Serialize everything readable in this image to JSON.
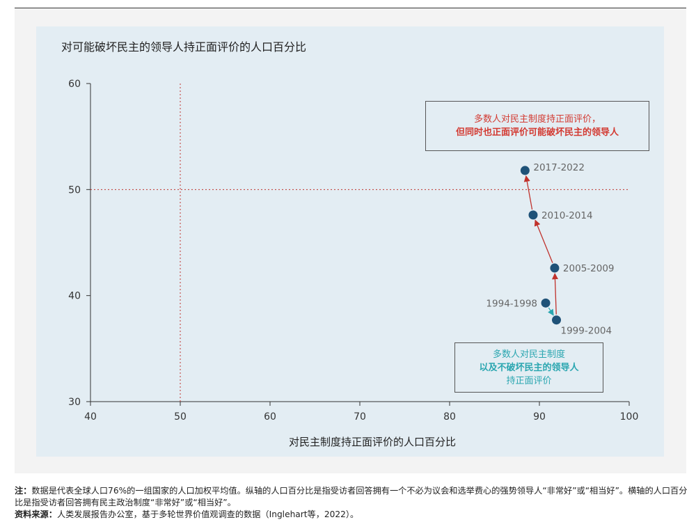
{
  "chart_data": {
    "type": "scatter",
    "title": "对可能破坏民主的领导人持正面评价的人口百分比",
    "xlabel": "对民主制度持正面评价的人口百分比",
    "ylabel": "",
    "xlim": [
      40,
      100
    ],
    "ylim": [
      30,
      60
    ],
    "xticks": [
      "40",
      "50",
      "60",
      "70",
      "80",
      "90",
      "100"
    ],
    "yticks": [
      "30",
      "40",
      "50",
      "60"
    ],
    "reference_lines": {
      "x": 50,
      "y": 50
    },
    "grid": false,
    "point_color": "#1f5278",
    "points": [
      {
        "label": "1994-1998",
        "x": 90.7,
        "y": 39.3
      },
      {
        "label": "1999-2004",
        "x": 91.9,
        "y": 37.7
      },
      {
        "label": "2005-2009",
        "x": 91.7,
        "y": 42.6
      },
      {
        "label": "2010-2014",
        "x": 89.3,
        "y": 47.6
      },
      {
        "label": "2017-2022",
        "x": 88.4,
        "y": 51.8
      }
    ],
    "arrows": [
      {
        "from": 0,
        "to": 1,
        "color": "#2aa6b0"
      },
      {
        "from": 1,
        "to": 2,
        "color": "#c0322c"
      },
      {
        "from": 2,
        "to": 3,
        "color": "#c0322c"
      },
      {
        "from": 3,
        "to": 4,
        "color": "#c0322c"
      }
    ],
    "annotations": {
      "top": {
        "line1": "多数人对民主制度持正面评价，",
        "line2": "但同时也正面评价可能破坏民主的领导人"
      },
      "bottom": {
        "line1": "多数人对民主制度",
        "line2": "以及不破坏民主的领导人",
        "line3": "持正面评价"
      }
    }
  },
  "notes": {
    "note_label": "注：",
    "note_text": "数据是代表全球人口76%的一组国家的人口加权平均值。纵轴的人口百分比是指受访者回答拥有一个不必为议会和选举费心的强势领导人“非常好”或“相当好”。横轴的人口百分比是指受访者回答拥有民主政治制度“非常好”或“相当好”。",
    "source_label": "资料来源：",
    "source_text": "人类发展报告办公室，基于多轮世界价值观调查的数据（Inglehart等，2022）。"
  }
}
